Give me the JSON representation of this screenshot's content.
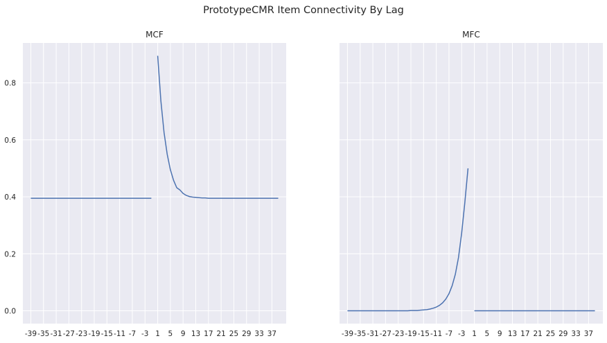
{
  "figure": {
    "suptitle": "PrototypeCMR Item Connectivity By Lag"
  },
  "chart_data": [
    {
      "type": "line",
      "title": "MCF",
      "xlabel": "",
      "ylabel": "",
      "xlim": [
        -41.5,
        41.5
      ],
      "ylim": [
        -0.045,
        0.94
      ],
      "grid": true,
      "xticks": [
        -39,
        -35,
        -31,
        -27,
        -23,
        -19,
        -15,
        -11,
        -7,
        -3,
        1,
        5,
        9,
        13,
        17,
        21,
        25,
        29,
        33,
        37
      ],
      "yticks": [
        0.0,
        0.2,
        0.4,
        0.6,
        0.8
      ],
      "ytick_labels": [
        "0.0",
        "0.2",
        "0.4",
        "0.6",
        "0.8"
      ],
      "series": [
        {
          "name": "",
          "color": "#4c72b0",
          "segments": [
            {
              "x": [
                -39,
                -1
              ],
              "y": [
                0.395,
                0.395
              ]
            },
            {
              "x": [
                1,
                2,
                3,
                4,
                5,
                6,
                7,
                8,
                9,
                10,
                11,
                12,
                13,
                14,
                15,
                16,
                17,
                18,
                19,
                20,
                21,
                22,
                23,
                24,
                25,
                26,
                27,
                28,
                29,
                30,
                31,
                32,
                33,
                34,
                35,
                36,
                37,
                38,
                39
              ],
              "y": [
                0.895,
                0.737,
                0.626,
                0.549,
                0.495,
                0.458,
                0.432,
                0.424,
                0.412,
                0.405,
                0.401,
                0.399,
                0.398,
                0.397,
                0.396,
                0.396,
                0.395,
                0.395,
                0.395,
                0.395,
                0.395,
                0.395,
                0.395,
                0.395,
                0.395,
                0.395,
                0.395,
                0.395,
                0.395,
                0.395,
                0.395,
                0.395,
                0.395,
                0.395,
                0.395,
                0.395,
                0.395,
                0.395,
                0.395
              ]
            }
          ]
        }
      ]
    },
    {
      "type": "line",
      "title": "MFC",
      "xlabel": "",
      "ylabel": "",
      "xlim": [
        -41.5,
        41.5
      ],
      "ylim": [
        -0.045,
        0.94
      ],
      "grid": true,
      "sharey": true,
      "xticks": [
        -39,
        -35,
        -31,
        -27,
        -23,
        -19,
        -15,
        -11,
        -7,
        -3,
        1,
        5,
        9,
        13,
        17,
        21,
        25,
        29,
        33,
        37
      ],
      "series": [
        {
          "name": "",
          "color": "#4c72b0",
          "segments": [
            {
              "x": [
                -39,
                -38,
                -37,
                -36,
                -35,
                -34,
                -33,
                -32,
                -31,
                -30,
                -29,
                -28,
                -27,
                -26,
                -25,
                -24,
                -23,
                -22,
                -21,
                -20,
                -19,
                -18,
                -17,
                -16,
                -15,
                -14,
                -13,
                -12,
                -11,
                -10,
                -9,
                -8,
                -7,
                -6,
                -5,
                -4,
                -3,
                -2,
                -1
              ],
              "y": [
                0,
                0,
                0,
                0,
                0,
                0,
                0,
                0,
                0,
                0,
                0,
                0,
                0,
                0,
                0,
                0,
                0,
                0,
                0,
                0,
                0.001,
                0.001,
                0.001,
                0.002,
                0.003,
                0.004,
                0.006,
                0.009,
                0.013,
                0.019,
                0.028,
                0.041,
                0.06,
                0.088,
                0.128,
                0.187,
                0.273,
                0.38,
                0.5
              ]
            },
            {
              "x": [
                1,
                39
              ],
              "y": [
                0,
                0
              ]
            }
          ]
        }
      ]
    }
  ]
}
